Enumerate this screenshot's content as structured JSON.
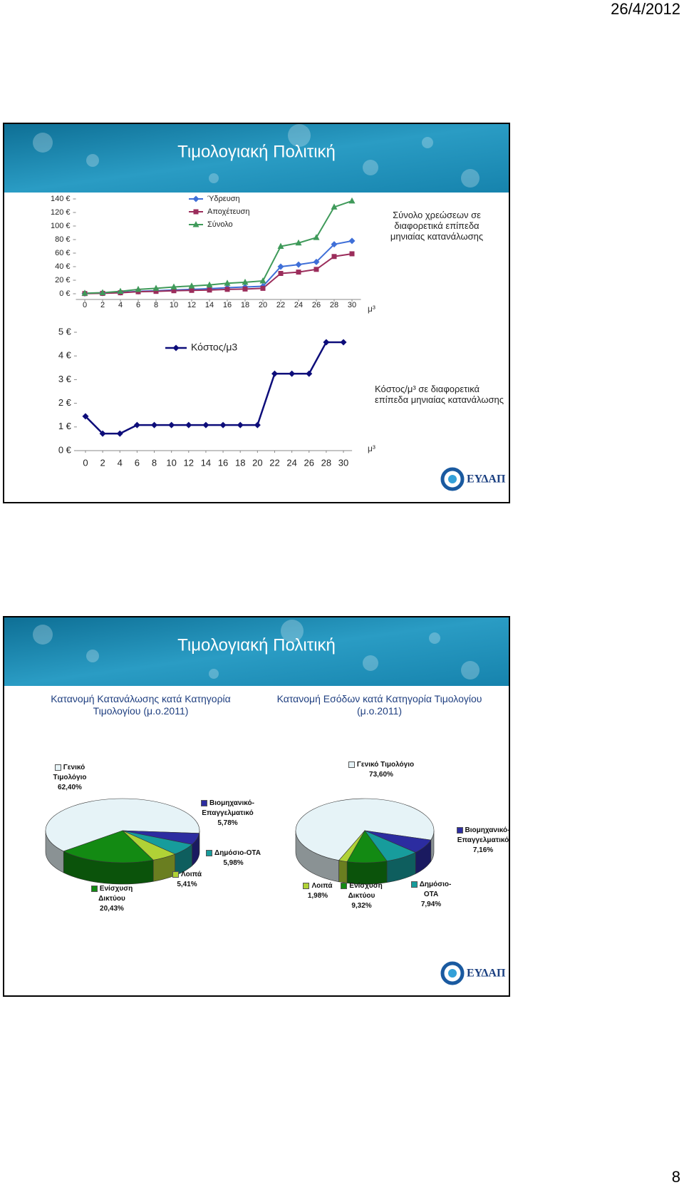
{
  "header": {
    "date": "26/4/2012"
  },
  "page_number": "8",
  "slides": [
    {
      "title": "Τιμολογιακή Πολιτική",
      "logo": "ΕΥΔΑΠ"
    },
    {
      "title": "Τιμολογιακή Πολιτική",
      "logo": "ΕΥΔΑΠ"
    }
  ],
  "chart_data": [
    {
      "type": "line",
      "annotation": "Σύνολο χρεώσεων σε διαφορετικά επίπεδα μηνιαίας κατανάλωσης",
      "x_label": "μ³",
      "x": [
        0,
        2,
        4,
        6,
        8,
        10,
        12,
        14,
        16,
        18,
        20,
        22,
        24,
        26,
        28,
        30
      ],
      "xlim": [
        -1,
        31
      ],
      "xticks": [
        0,
        2,
        4,
        6,
        8,
        10,
        12,
        14,
        16,
        18,
        20,
        22,
        24,
        26,
        28,
        30
      ],
      "ylim": [
        0,
        140
      ],
      "yticks": [
        {
          "value": 0,
          "label": "0 €"
        },
        {
          "value": 20,
          "label": "20 €"
        },
        {
          "value": 40,
          "label": "40 €"
        },
        {
          "value": 60,
          "label": "60 €"
        },
        {
          "value": 80,
          "label": "80 €"
        },
        {
          "value": 100,
          "label": "100 €"
        },
        {
          "value": 120,
          "label": "120 €"
        },
        {
          "value": 140,
          "label": "140 €"
        }
      ],
      "series": [
        {
          "name": "Ύδρευση",
          "color": "#3f6fd8",
          "marker": "diamond",
          "values": [
            0.5,
            1,
            2,
            3.5,
            4.5,
            5.5,
            6.5,
            7.5,
            9,
            10,
            11,
            40,
            43,
            47,
            73,
            78
          ]
        },
        {
          "name": "Αποχέτευση",
          "color": "#9b2d5b",
          "marker": "square",
          "values": [
            0.3,
            0.6,
            1.5,
            3,
            3.5,
            4.5,
            5,
            5.5,
            6.5,
            7,
            8,
            30,
            32,
            36,
            55,
            59
          ]
        },
        {
          "name": "Σύνολο",
          "color": "#3f9a5a",
          "marker": "triangle",
          "values": [
            0.8,
            1.6,
            3.5,
            6.5,
            8,
            10,
            11.5,
            13,
            15.5,
            17,
            19,
            70,
            75,
            83,
            128,
            137
          ]
        }
      ]
    },
    {
      "type": "line",
      "annotation": "Κόστος/μ³ σε διαφορετικά επίπεδα μηνιαίας κατανάλωσης",
      "x_label": "μ³",
      "x": [
        0,
        2,
        4,
        6,
        8,
        10,
        12,
        14,
        16,
        18,
        20,
        22,
        24,
        26,
        28,
        30
      ],
      "xlim": [
        -1,
        31
      ],
      "xticks": [
        0,
        2,
        4,
        6,
        8,
        10,
        12,
        14,
        16,
        18,
        20,
        22,
        24,
        26,
        28,
        30
      ],
      "ylim": [
        0,
        5
      ],
      "yticks": [
        {
          "value": 0,
          "label": "0 €"
        },
        {
          "value": 1,
          "label": "1 €"
        },
        {
          "value": 2,
          "label": "2 €"
        },
        {
          "value": 3,
          "label": "3 €"
        },
        {
          "value": 4,
          "label": "4 €"
        },
        {
          "value": 5,
          "label": "5 €"
        }
      ],
      "series": [
        {
          "name": "Κόστος/μ3",
          "color": "#0d0d7a",
          "marker": "diamond",
          "values": [
            1.45,
            0.72,
            0.72,
            1.08,
            1.08,
            1.08,
            1.08,
            1.08,
            1.08,
            1.08,
            1.08,
            3.25,
            3.25,
            3.25,
            4.58,
            4.58
          ]
        }
      ]
    },
    {
      "type": "pie",
      "title": "Κατανομή Κατανάλωσης κατά Κατηγορία Τιμολογίου (μ.ο.2011)",
      "categories": [
        "Γενικό Τιμολόγιο",
        "Βιομηχανικό-Επαγγελματικό",
        "Δημόσιο-ΟΤΑ",
        "Λοιπά",
        "Ενίσχυση Δικτύου"
      ],
      "values": [
        62.4,
        5.78,
        5.98,
        5.41,
        20.43
      ],
      "value_labels": [
        "62,40%",
        "5,78%",
        "5,98%",
        "5,41%",
        "20,43%"
      ],
      "colors": [
        "#e6f3f7",
        "#2c2ca0",
        "#179c9c",
        "#b0d236",
        "#138a13"
      ]
    },
    {
      "type": "pie",
      "title": "Κατανομή Εσόδων κατά Κατηγορία Τιμολογίου (μ.ο.2011)",
      "categories": [
        "Γενικό Τιμολόγιο",
        "Βιομηχανικό-Επαγγελματικό",
        "Δημόσιο-ΟΤΑ",
        "Ενίσχυση Δικτύου",
        "Λοιπά"
      ],
      "values": [
        73.6,
        7.16,
        7.94,
        9.32,
        1.98
      ],
      "value_labels": [
        "73,60%",
        "7,16%",
        "7,94%",
        "9,32%",
        "1,98%"
      ],
      "colors": [
        "#e6f3f7",
        "#2c2ca0",
        "#179c9c",
        "#138a13",
        "#b0d236"
      ]
    }
  ]
}
